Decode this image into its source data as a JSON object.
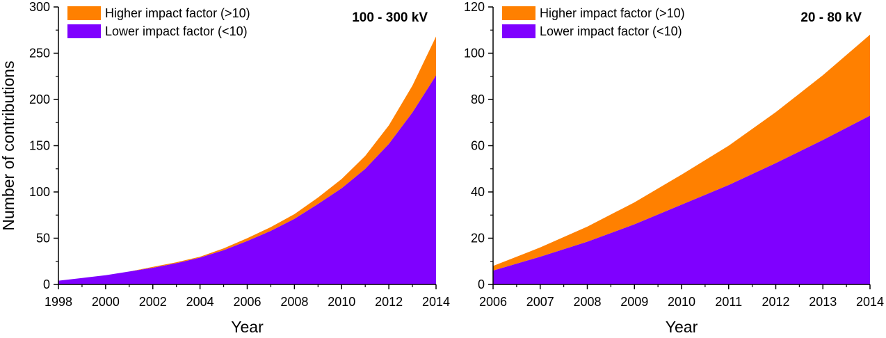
{
  "chart_data": [
    {
      "type": "area",
      "stacked": true,
      "title": "100 - 300 kV",
      "xlabel": "Year",
      "ylabel": "Number of contributions",
      "xlim": [
        1998,
        2014
      ],
      "ylim": [
        0,
        300
      ],
      "xticks": [
        "1998",
        "2000",
        "2002",
        "2004",
        "2006",
        "2008",
        "2010",
        "2012",
        "2014"
      ],
      "yticks": [
        "0",
        "50",
        "100",
        "150",
        "200",
        "250",
        "300"
      ],
      "x": [
        1998,
        1999,
        2000,
        2001,
        2002,
        2003,
        2004,
        2005,
        2006,
        2007,
        2008,
        2009,
        2010,
        2011,
        2012,
        2013,
        2014
      ],
      "series": [
        {
          "name": "Lower impact factor (<10)",
          "color": "#7f00ff",
          "values": [
            4,
            7,
            10,
            14,
            18,
            23,
            29,
            37,
            47,
            58,
            71,
            87,
            104,
            125,
            152,
            186,
            226
          ]
        },
        {
          "name": "Higher impact factor (>10)",
          "color": "#ff8000",
          "values": [
            0,
            0,
            0,
            0,
            1,
            1,
            1,
            2,
            3,
            4,
            5,
            7,
            10,
            14,
            20,
            29,
            42
          ]
        }
      ],
      "legend_position": "top-left",
      "grid": false
    },
    {
      "type": "area",
      "stacked": true,
      "title": "20 - 80 kV",
      "xlabel": "Year",
      "ylabel": "",
      "xlim": [
        2006,
        2014
      ],
      "ylim": [
        0,
        120
      ],
      "xticks": [
        "2006",
        "2007",
        "2008",
        "2009",
        "2010",
        "2011",
        "2012",
        "2013",
        "2014"
      ],
      "yticks": [
        "0",
        "20",
        "40",
        "60",
        "80",
        "100",
        "120"
      ],
      "x": [
        2006,
        2007,
        2008,
        2009,
        2010,
        2011,
        2012,
        2013,
        2014
      ],
      "series": [
        {
          "name": "Lower impact factor (<10)",
          "color": "#7f00ff",
          "values": [
            6,
            12,
            18.5,
            26,
            34.5,
            43,
            52.5,
            62.5,
            73
          ]
        },
        {
          "name": "Higher impact factor (>10)",
          "color": "#ff8000",
          "values": [
            2,
            4,
            6.5,
            9.5,
            13,
            17,
            22,
            28,
            35
          ]
        }
      ],
      "legend_position": "top-left",
      "grid": false
    }
  ]
}
